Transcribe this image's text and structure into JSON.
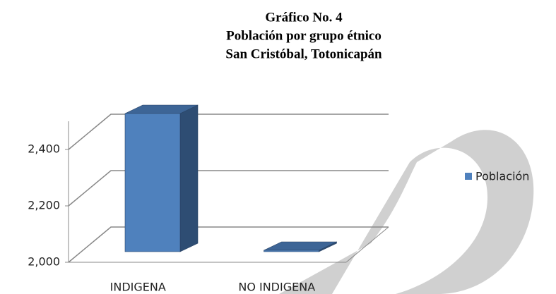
{
  "chart_data": {
    "type": "bar3d",
    "title": [
      "Gráfico No. 4",
      "Población por grupo étnico",
      "San Cristóbal, Totonicapán"
    ],
    "categories": [
      "INDIGENA",
      "NO INDIGENA"
    ],
    "series": [
      {
        "name": "Población",
        "color": "#4f81bd",
        "values": [
          2490,
          2005
        ]
      }
    ],
    "ylim": [
      2000,
      2500
    ],
    "yticks": [
      {
        "value": 2000,
        "label": "2,000"
      },
      {
        "value": 2200,
        "label": "2,200"
      },
      {
        "value": 2400,
        "label": "2,400"
      }
    ],
    "grid": true,
    "legend": "right"
  }
}
